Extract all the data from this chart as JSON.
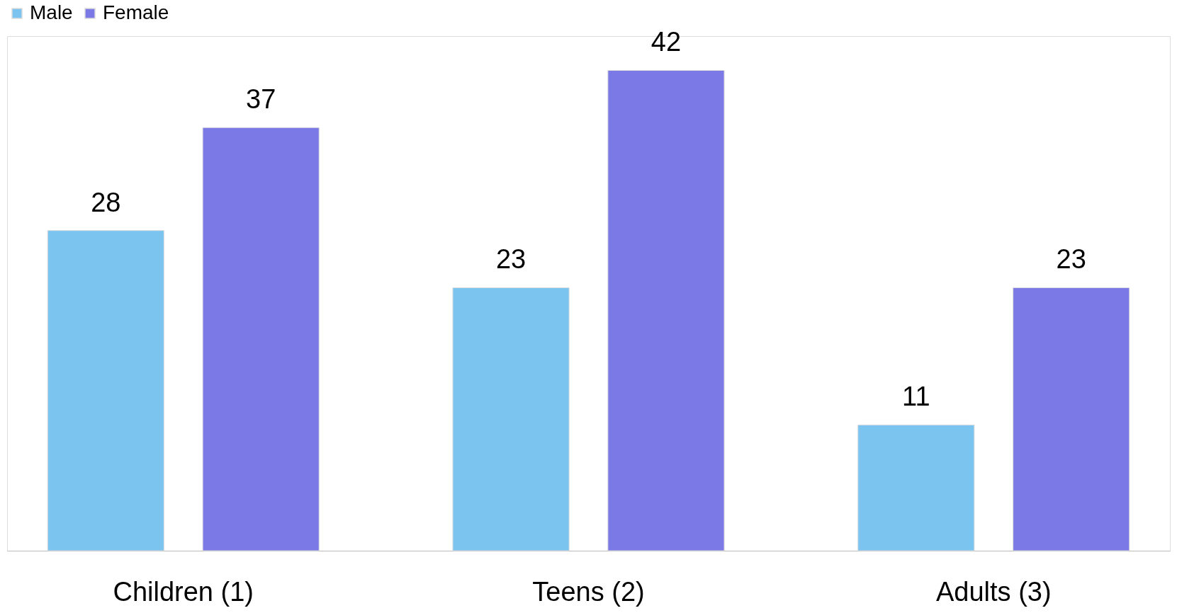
{
  "chart_data": {
    "type": "bar",
    "categories": [
      "Children (1)",
      "Teens (2)",
      "Adults (3)"
    ],
    "series": [
      {
        "name": "Male",
        "color": "#7cc4f0",
        "values": [
          28,
          23,
          11
        ]
      },
      {
        "name": "Female",
        "color": "#7b79e6",
        "values": [
          37,
          42,
          23
        ]
      }
    ],
    "data_labels": true,
    "legend": "top",
    "grid": false
  }
}
